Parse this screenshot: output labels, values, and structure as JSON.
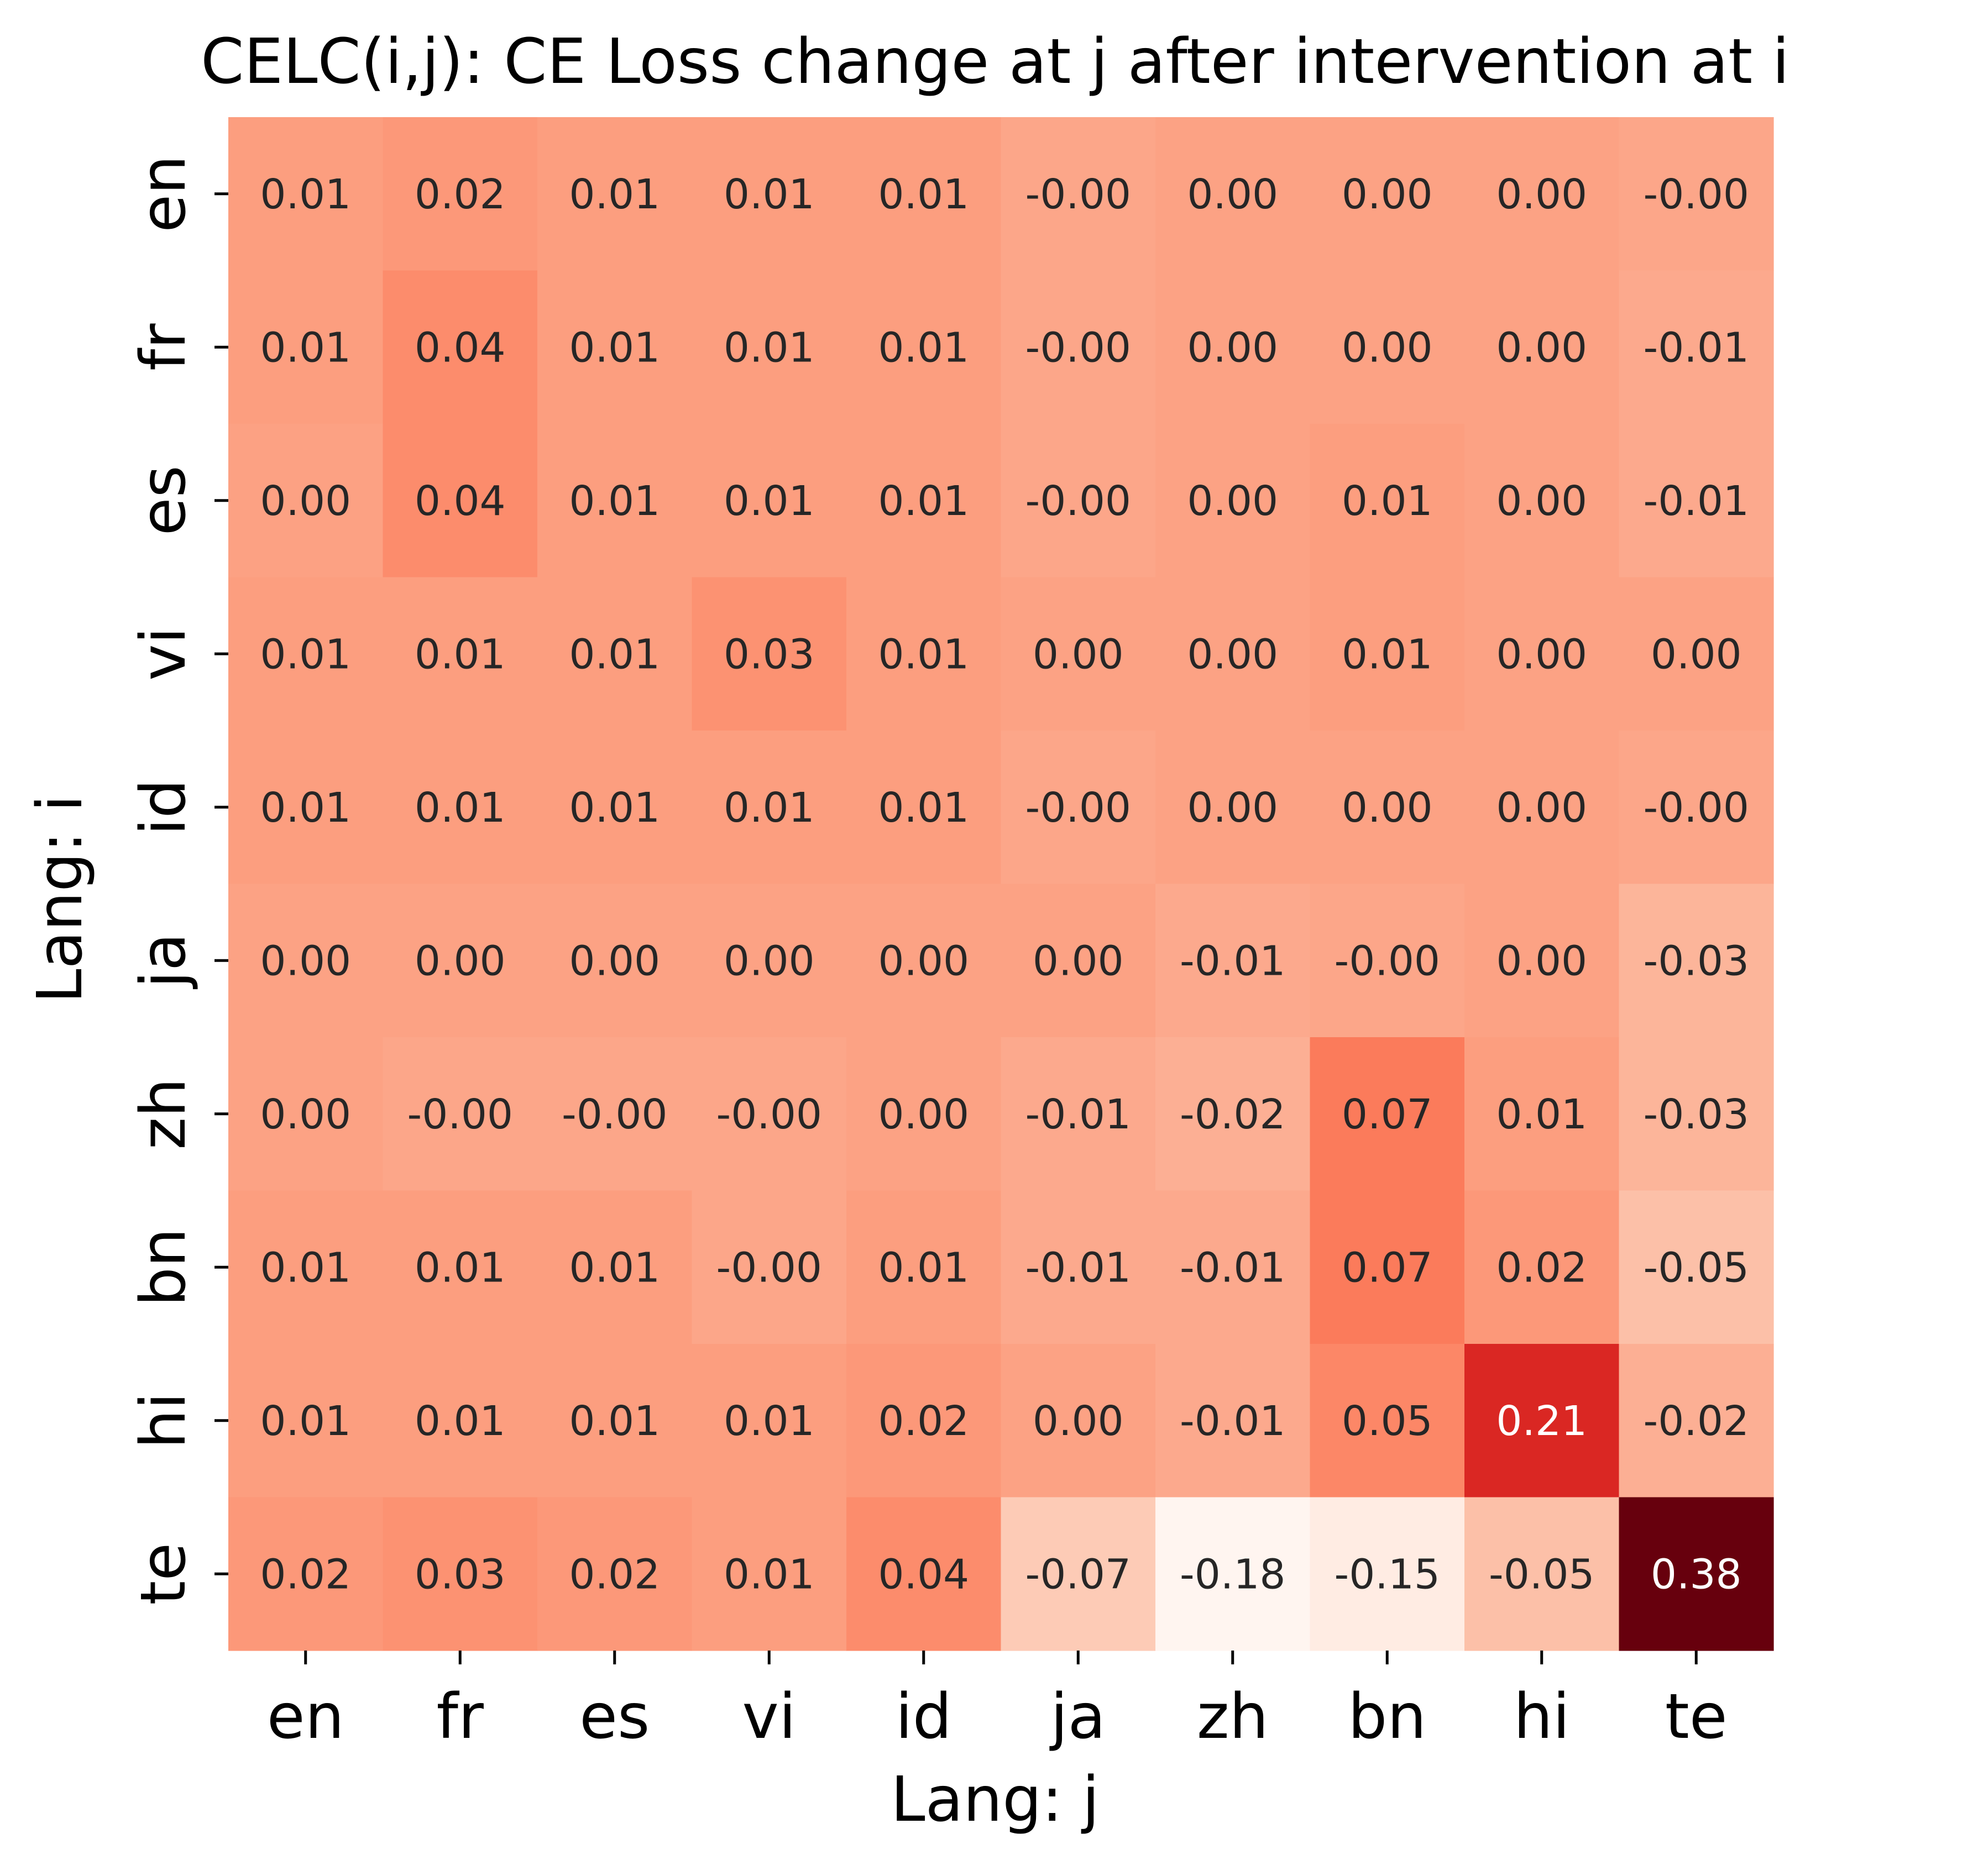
{
  "chart_data": {
    "type": "heatmap",
    "title": "CELC(i,j): CE Loss change at j after intervention at i",
    "xlabel": "Lang: j",
    "ylabel": "Lang: i",
    "x_categories": [
      "en",
      "fr",
      "es",
      "vi",
      "id",
      "ja",
      "zh",
      "bn",
      "hi",
      "te"
    ],
    "y_categories": [
      "en",
      "fr",
      "es",
      "vi",
      "id",
      "ja",
      "zh",
      "bn",
      "hi",
      "te"
    ],
    "values": [
      [
        0.01,
        0.02,
        0.01,
        0.01,
        0.01,
        -0.004,
        0.003,
        0.003,
        0.003,
        -0.004
      ],
      [
        0.01,
        0.04,
        0.01,
        0.01,
        0.01,
        -0.004,
        0.003,
        0.003,
        0.003,
        -0.01
      ],
      [
        0.004,
        0.04,
        0.01,
        0.01,
        0.01,
        -0.004,
        0.003,
        0.01,
        0.003,
        -0.01
      ],
      [
        0.01,
        0.01,
        0.01,
        0.03,
        0.01,
        0.003,
        0.003,
        0.01,
        0.003,
        0.003
      ],
      [
        0.01,
        0.01,
        0.01,
        0.01,
        0.01,
        -0.004,
        0.003,
        0.003,
        0.003,
        -0.004
      ],
      [
        0.003,
        0.003,
        0.003,
        0.003,
        0.003,
        0.003,
        -0.01,
        -0.004,
        0.003,
        -0.03
      ],
      [
        0.003,
        -0.004,
        -0.004,
        -0.004,
        0.003,
        -0.01,
        -0.02,
        0.07,
        0.01,
        -0.03
      ],
      [
        0.01,
        0.01,
        0.01,
        -0.004,
        0.01,
        -0.01,
        -0.01,
        0.07,
        0.02,
        -0.05
      ],
      [
        0.01,
        0.01,
        0.01,
        0.01,
        0.02,
        0.003,
        -0.01,
        0.05,
        0.21,
        -0.02
      ],
      [
        0.02,
        0.03,
        0.02,
        0.01,
        0.04,
        -0.07,
        -0.18,
        -0.15,
        -0.05,
        0.38
      ]
    ],
    "value_labels": [
      [
        "0.01",
        "0.02",
        "0.01",
        "0.01",
        "0.01",
        "-0.00",
        "0.00",
        "0.00",
        "0.00",
        "-0.00"
      ],
      [
        "0.01",
        "0.04",
        "0.01",
        "0.01",
        "0.01",
        "-0.00",
        "0.00",
        "0.00",
        "0.00",
        "-0.01"
      ],
      [
        "0.00",
        "0.04",
        "0.01",
        "0.01",
        "0.01",
        "-0.00",
        "0.00",
        "0.01",
        "0.00",
        "-0.01"
      ],
      [
        "0.01",
        "0.01",
        "0.01",
        "0.03",
        "0.01",
        "0.00",
        "0.00",
        "0.01",
        "0.00",
        "0.00"
      ],
      [
        "0.01",
        "0.01",
        "0.01",
        "0.01",
        "0.01",
        "-0.00",
        "0.00",
        "0.00",
        "0.00",
        "-0.00"
      ],
      [
        "0.00",
        "0.00",
        "0.00",
        "0.00",
        "0.00",
        "0.00",
        "-0.01",
        "-0.00",
        "0.00",
        "-0.03"
      ],
      [
        "0.00",
        "-0.00",
        "-0.00",
        "-0.00",
        "0.00",
        "-0.01",
        "-0.02",
        "0.07",
        "0.01",
        "-0.03"
      ],
      [
        "0.01",
        "0.01",
        "0.01",
        "-0.00",
        "0.01",
        "-0.01",
        "-0.01",
        "0.07",
        "0.02",
        "-0.05"
      ],
      [
        "0.01",
        "0.01",
        "0.01",
        "0.01",
        "0.02",
        "0.00",
        "-0.01",
        "0.05",
        "0.21",
        "-0.02"
      ],
      [
        "0.02",
        "0.03",
        "0.02",
        "0.01",
        "0.04",
        "-0.07",
        "-0.18",
        "-0.15",
        "-0.05",
        "0.38"
      ]
    ],
    "color_range": [
      -0.18,
      0.38
    ],
    "colormap": [
      "#fff5f0",
      "#fee0d2",
      "#fcbba1",
      "#fc9272",
      "#fb6a4a",
      "#ef3b2c",
      "#cb181d",
      "#a50f15",
      "#67000d"
    ],
    "grid": false
  }
}
